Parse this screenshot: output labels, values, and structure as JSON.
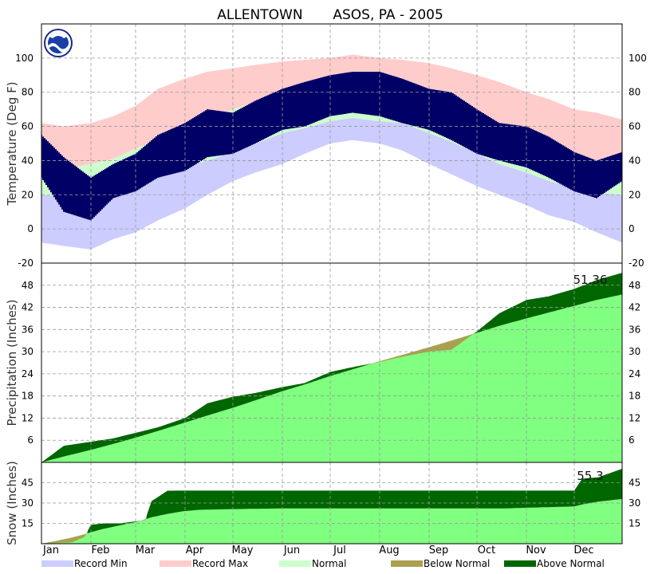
{
  "chart_data": {
    "type": "area",
    "title": "ALLENTOWN       ASOS, PA - 2005",
    "months": [
      "Jan",
      "Feb",
      "Mar",
      "Apr",
      "May",
      "Jun",
      "Jul",
      "Aug",
      "Sep",
      "Oct",
      "Nov",
      "Dec"
    ],
    "legend": [
      {
        "label": "Record Min",
        "color": "#ccccff"
      },
      {
        "label": "Record Max",
        "color": "#ffcccc"
      },
      {
        "label": "Normal",
        "color": "#ccffcc"
      },
      {
        "label": "Below Normal",
        "color": "#aaa050"
      },
      {
        "label": "Above Normal",
        "color": "#006600"
      }
    ],
    "colors": {
      "observed_temp": "#000066",
      "normal_precip_fill": "#80ff80",
      "grid": "#999999"
    },
    "panels": [
      {
        "id": "temperature",
        "ylabel": "Temperature (Deg F)",
        "ylim": [
          -20,
          120
        ],
        "ticks": [
          -20,
          0,
          20,
          40,
          60,
          80,
          100
        ],
        "tick_labels_left": [
          "-20",
          "0",
          "20",
          "40",
          "60",
          "80",
          "100"
        ],
        "tick_labels_right": [
          "-20",
          "0",
          "20",
          "40",
          "60",
          "80",
          "100"
        ],
        "series": {
          "day_of_year": [
            1,
            15,
            32,
            46,
            60,
            74,
            91,
            105,
            121,
            135,
            152,
            166,
            182,
            196,
            213,
            227,
            244,
            258,
            274,
            288,
            305,
            319,
            335,
            349,
            365
          ],
          "record_max": [
            62,
            60,
            62,
            66,
            72,
            82,
            88,
            92,
            94,
            96,
            98,
            99,
            100,
            102,
            100,
            99,
            97,
            94,
            90,
            86,
            80,
            76,
            70,
            68,
            64
          ],
          "normal_high": [
            35,
            35,
            38,
            41,
            47,
            52,
            59,
            64,
            70,
            74,
            79,
            82,
            84,
            85,
            83,
            82,
            77,
            72,
            65,
            59,
            52,
            46,
            40,
            37,
            35
          ],
          "normal_low": [
            20,
            19,
            20,
            22,
            26,
            30,
            36,
            40,
            45,
            50,
            56,
            59,
            63,
            65,
            63,
            62,
            56,
            51,
            44,
            38,
            33,
            28,
            24,
            21,
            20
          ],
          "record_min": [
            -8,
            -10,
            -12,
            -6,
            -2,
            5,
            12,
            20,
            28,
            33,
            38,
            44,
            50,
            52,
            50,
            46,
            38,
            32,
            25,
            20,
            14,
            8,
            4,
            -2,
            -8
          ],
          "observed_high": [
            55,
            42,
            30,
            38,
            44,
            55,
            62,
            70,
            68,
            75,
            82,
            86,
            90,
            92,
            92,
            88,
            82,
            80,
            70,
            62,
            60,
            54,
            45,
            40,
            45
          ],
          "observed_low": [
            30,
            10,
            5,
            18,
            22,
            30,
            34,
            42,
            44,
            50,
            58,
            60,
            66,
            68,
            66,
            62,
            58,
            52,
            44,
            40,
            36,
            30,
            22,
            18,
            28
          ]
        }
      },
      {
        "id": "precipitation",
        "ylabel": "Precipitation (Inches)",
        "ylim": [
          0,
          54
        ],
        "ticks": [
          6,
          12,
          18,
          24,
          30,
          36,
          42,
          48
        ],
        "tick_labels_left": [
          "6",
          "12",
          "18",
          "24",
          "30",
          "36",
          "42",
          "48"
        ],
        "tick_labels_right": [
          "6",
          "12",
          "18",
          "24",
          "30",
          "36",
          "42",
          "48"
        ],
        "annotation": "51.36",
        "series": {
          "day_of_year": [
            1,
            15,
            32,
            46,
            60,
            74,
            91,
            105,
            121,
            135,
            152,
            166,
            182,
            196,
            213,
            227,
            244,
            258,
            274,
            288,
            305,
            319,
            335,
            349,
            365
          ],
          "normal_cumulative": [
            0,
            1.6,
            3.4,
            5.0,
            6.7,
            8.5,
            10.8,
            12.7,
            14.8,
            16.8,
            19.3,
            21.1,
            23.4,
            25.2,
            27.4,
            29.1,
            31.2,
            33.0,
            35.1,
            37.0,
            39.0,
            40.6,
            42.4,
            44.0,
            45.5
          ],
          "observed_cumulative": [
            0,
            4.5,
            5.6,
            6.5,
            8.0,
            9.5,
            12.0,
            16.0,
            17.8,
            18.8,
            20.4,
            21.5,
            24.5,
            25.8,
            27.2,
            28.6,
            30.0,
            30.5,
            35.5,
            40.4,
            44.0,
            45.0,
            47.0,
            49.4,
            51.36
          ]
        }
      },
      {
        "id": "snow",
        "ylabel": "Snow (Inches)",
        "ylim": [
          0,
          60
        ],
        "ticks": [
          15,
          30,
          45
        ],
        "tick_labels_left": [
          "15",
          "30",
          "45"
        ],
        "tick_labels_right": [
          "15",
          "30",
          "45"
        ],
        "annotation": "55.3",
        "series": {
          "day_of_year": [
            1,
            10,
            20,
            28,
            32,
            40,
            50,
            60,
            66,
            70,
            80,
            90,
            100,
            120,
            150,
            180,
            210,
            240,
            270,
            290,
            305,
            320,
            335,
            340,
            350,
            365
          ],
          "normal_cumulative": [
            0,
            2,
            4.5,
            7,
            8.5,
            11,
            13.5,
            16,
            18,
            19.5,
            22,
            24,
            25,
            25.5,
            26,
            26,
            26,
            26,
            26,
            26,
            26.5,
            27,
            27.5,
            29,
            31,
            33
          ],
          "observed_cumulative": [
            0,
            0.5,
            1,
            5,
            14,
            15,
            15,
            16.5,
            17.5,
            31.4,
            39.1,
            39.2,
            39.2,
            39.2,
            39.2,
            39.2,
            39.2,
            39.2,
            39.2,
            39.2,
            39.2,
            39.2,
            39.2,
            48,
            49,
            55.3
          ]
        }
      }
    ]
  }
}
